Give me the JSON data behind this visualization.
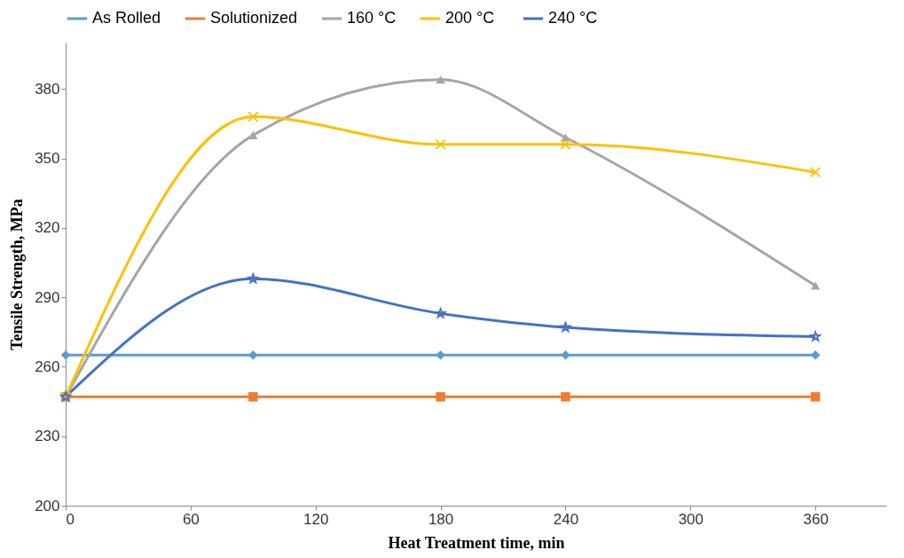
{
  "chart_data": {
    "type": "line",
    "xlabel": "Heat Treatment time, min",
    "ylabel": "Tensile Strength, MPa",
    "x": [
      0,
      90,
      180,
      240,
      360
    ],
    "series": [
      {
        "name": "As Rolled",
        "color": "#5b9bd5",
        "marker": "diamond",
        "values": [
          265,
          265,
          265,
          265,
          265
        ]
      },
      {
        "name": "Solutionized",
        "color": "#ed7d31",
        "marker": "square",
        "values": [
          247,
          247,
          247,
          247,
          247
        ]
      },
      {
        "name": "160 °C",
        "color": "#a5a5a5",
        "marker": "triangle",
        "values": [
          247,
          360,
          384,
          359,
          295
        ]
      },
      {
        "name": "200  °C",
        "color": "#ffc000",
        "marker": "cross",
        "values": [
          247,
          368,
          356,
          356,
          344
        ]
      },
      {
        "name": "240  °C",
        "color": "#4472c4",
        "marker": "star",
        "values": [
          247,
          298,
          283,
          277,
          273
        ]
      }
    ],
    "xlim": [
      0,
      394
    ],
    "xticks": [
      0,
      60,
      120,
      180,
      240,
      300,
      360
    ],
    "ylim": [
      200,
      400
    ],
    "yticks": [
      200,
      230,
      260,
      290,
      320,
      350,
      380
    ],
    "grid": false,
    "legend": "top",
    "line_style": "solid"
  }
}
